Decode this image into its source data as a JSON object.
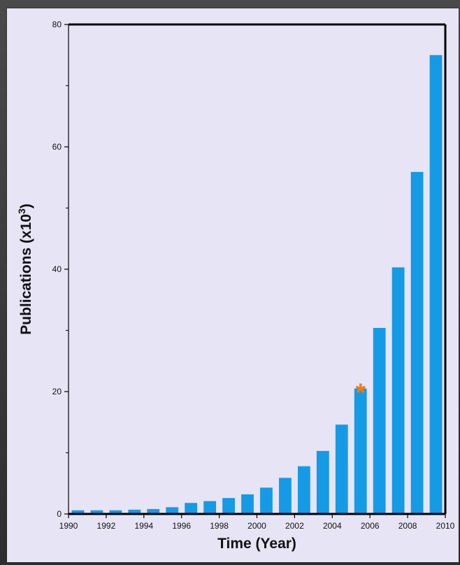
{
  "colors": {
    "bar": "#159ae6",
    "marker": "#ff7a00",
    "axis": "#000000"
  },
  "chart_data": {
    "type": "bar",
    "title": "",
    "xlabel": "Time (Year)",
    "ylabel_main": "Publications (x10",
    "ylabel_sup": "3",
    "ylabel_end": ")",
    "categories": [
      "1990",
      "1991",
      "1992",
      "1993",
      "1994",
      "1995",
      "1996",
      "1997",
      "1998",
      "1999",
      "2000",
      "2001",
      "2002",
      "2003",
      "2004",
      "2005",
      "2006",
      "2007",
      "2008",
      "2009"
    ],
    "values": [
      0.6,
      0.6,
      0.6,
      0.7,
      0.8,
      1.1,
      1.8,
      2.1,
      2.6,
      3.2,
      4.3,
      5.9,
      7.8,
      10.3,
      14.6,
      20.5,
      30.4,
      40.3,
      55.9,
      75.0
    ],
    "xlim": [
      1990,
      2010
    ],
    "x_ticks": [
      "1990",
      "1992",
      "1994",
      "1996",
      "1998",
      "2000",
      "2002",
      "2004",
      "2006",
      "2008",
      "2010"
    ],
    "ylim": [
      0,
      80
    ],
    "y_ticks": [
      "0",
      "20",
      "40",
      "60",
      "80"
    ],
    "grid": false,
    "annotations": [
      {
        "text": "*",
        "category": "2005"
      }
    ]
  }
}
